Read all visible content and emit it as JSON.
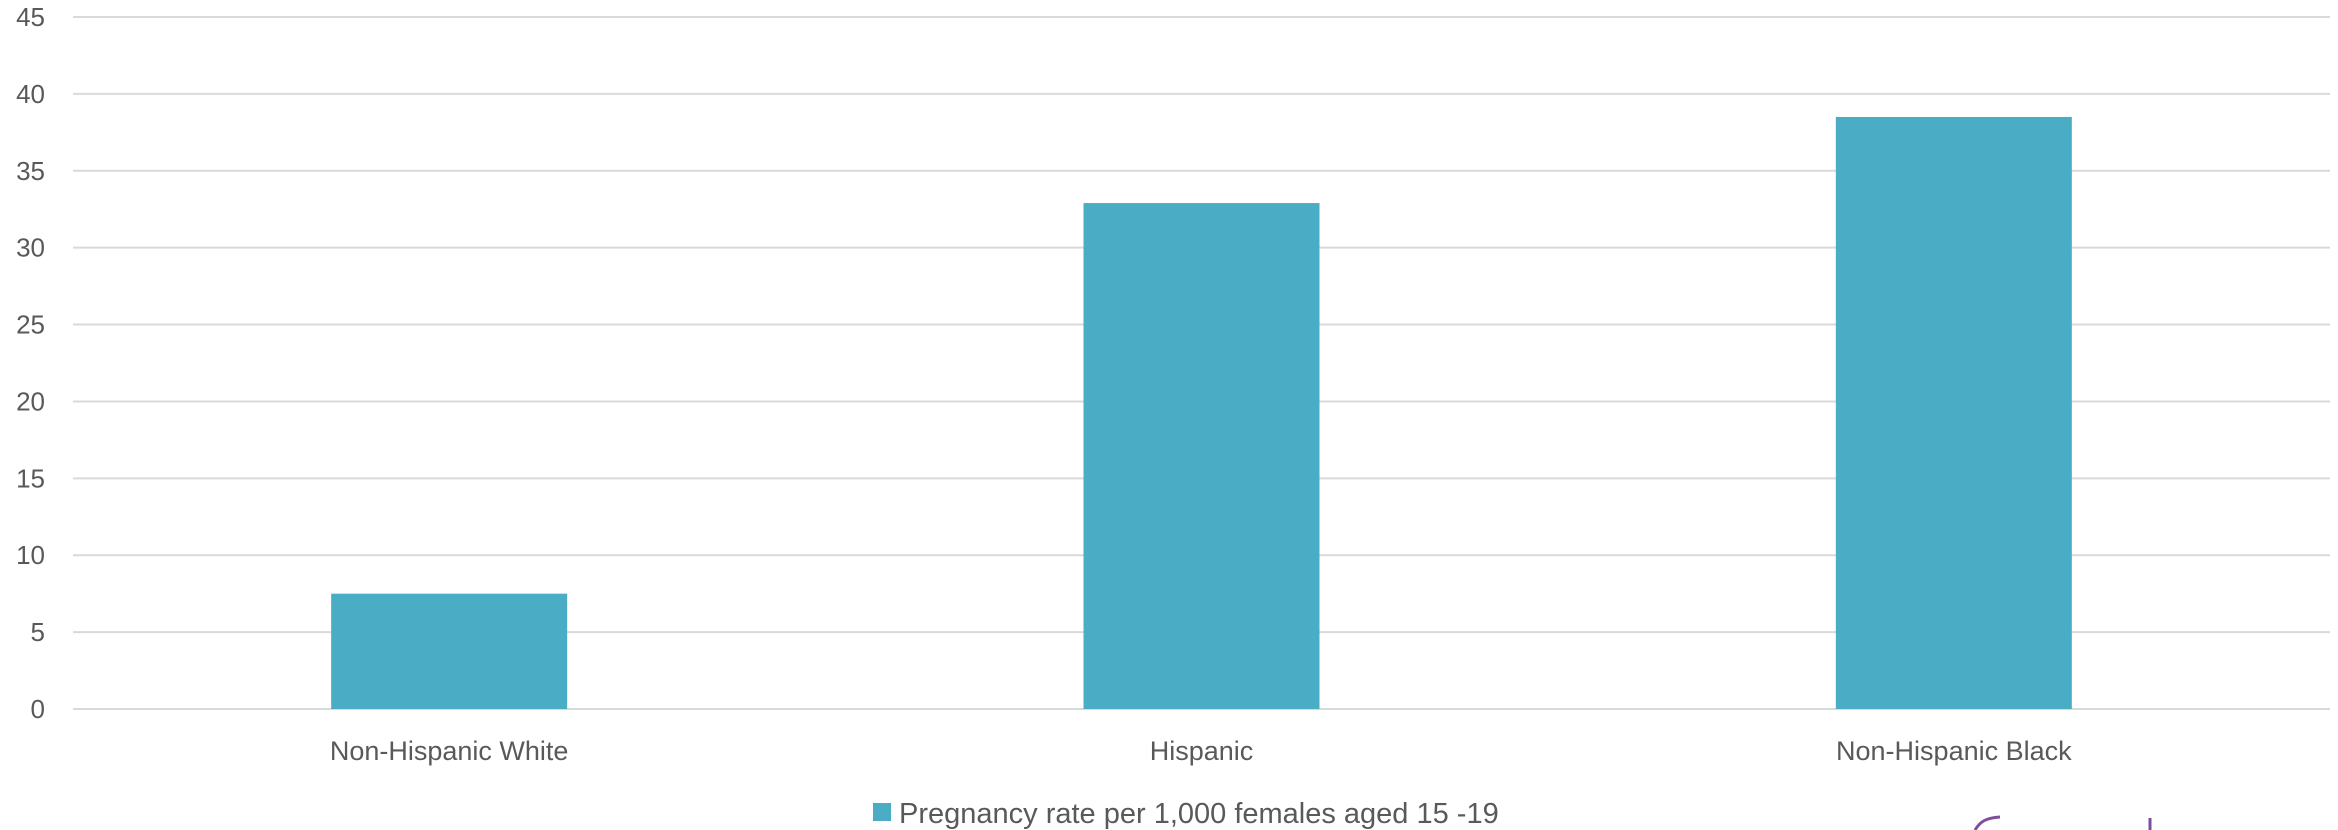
{
  "chart_data": {
    "type": "bar",
    "title": "",
    "xlabel": "",
    "ylabel": "",
    "categories": [
      "Non-Hispanic White",
      "Hispanic",
      "Non-Hispanic Black"
    ],
    "series": [
      {
        "name": "Pregnancy rate per 1,000 females aged 15 -19",
        "values": [
          7.5,
          32.9,
          38.5
        ]
      }
    ],
    "ylim": [
      0,
      45
    ],
    "yticks": [
      0,
      5,
      10,
      15,
      20,
      25,
      30,
      35,
      40,
      45
    ],
    "grid": true,
    "legend_position": "bottom"
  },
  "colors": {
    "bar": "#4bacc6",
    "grid": "#d9d9d9",
    "text": "#595959",
    "logo": "#7b4f9d"
  },
  "icons": {
    "logo": "partial-logo-mark"
  }
}
